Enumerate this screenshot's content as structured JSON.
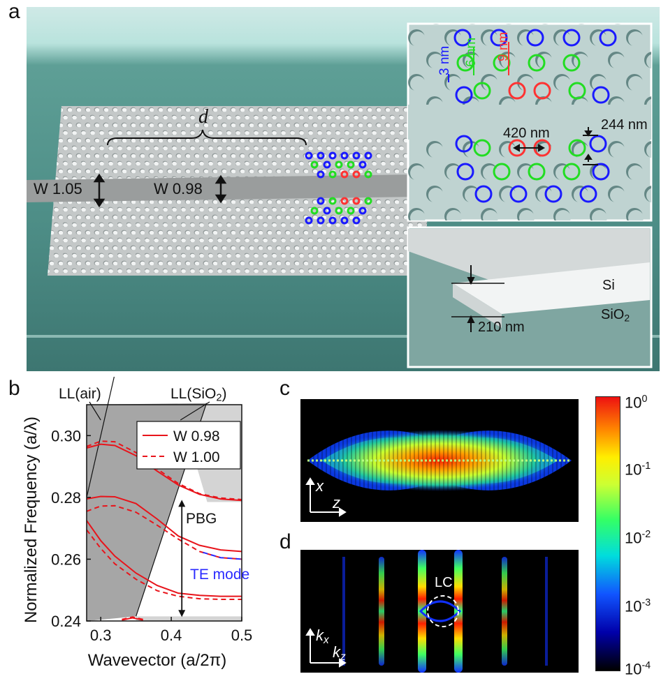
{
  "panels": {
    "a": {
      "letter": "a",
      "d_label": "d",
      "w105_label": "W 1.05",
      "w098_label": "W 0.98",
      "inset_top": {
        "shift_blue": "3 nm",
        "shift_green": "6 nm",
        "shift_red": "9 nm",
        "spacing": "420 nm",
        "diameter": "244 nm"
      },
      "inset_bottom": {
        "si": "Si",
        "sio2_main": "SiO",
        "sio2_sub": "2",
        "thickness": "210 nm"
      },
      "colors": {
        "blue": "#1a1aff",
        "green": "#22dd22",
        "red": "#ff3333"
      }
    },
    "b": {
      "letter": "b",
      "ll_air": "LL(air)",
      "ll_sio2_main": "LL(SiO",
      "ll_sio2_sub": "2",
      "ll_sio2_end": ")",
      "pbg_label": "PBG",
      "te_label": "TE mode"
    },
    "c": {
      "letter": "c",
      "axis_x": "x",
      "axis_z": "z"
    },
    "d": {
      "letter": "d",
      "axis_kx_main": "k",
      "axis_kx_sub": "x",
      "axis_kz_main": "k",
      "axis_kz_sub": "z",
      "lc_label": "LC"
    },
    "colorbar": {
      "ticks": [
        {
          "base": "10",
          "exp": "0"
        },
        {
          "base": "10",
          "exp": "-1"
        },
        {
          "base": "10",
          "exp": "-2"
        },
        {
          "base": "10",
          "exp": "-3"
        },
        {
          "base": "10",
          "exp": "-4"
        }
      ]
    }
  },
  "chart_data": {
    "type": "line",
    "xlabel": "Wavevector (a/2π)",
    "ylabel": "Normalized Frequency (a/λ)",
    "xlim": [
      0.28,
      0.5
    ],
    "ylim": [
      0.24,
      0.31
    ],
    "xticks": [
      "0.3",
      "0.4",
      "0.5"
    ],
    "yticks": [
      "0.24",
      "0.26",
      "0.28",
      "0.30"
    ],
    "legend_placement": "top-right",
    "series": [
      {
        "name": "W 0.98",
        "style": "solid",
        "color": "#e8141b",
        "bands": [
          {
            "x": [
              0.28,
              0.3,
              0.32,
              0.35,
              0.38,
              0.41,
              0.44,
              0.47,
              0.5
            ],
            "y": [
              0.296,
              0.2972,
              0.2968,
              0.2935,
              0.2885,
              0.284,
              0.281,
              0.2795,
              0.279
            ]
          },
          {
            "x": [
              0.28,
              0.3,
              0.32,
              0.35,
              0.38,
              0.41,
              0.44,
              0.47,
              0.5
            ],
            "y": [
              0.2795,
              0.2803,
              0.2802,
              0.278,
              0.273,
              0.2675,
              0.2645,
              0.263,
              0.2625
            ]
          },
          {
            "x": [
              0.28,
              0.3,
              0.32,
              0.35,
              0.38,
              0.41,
              0.44,
              0.47,
              0.5
            ],
            "y": [
              0.2725,
              0.266,
              0.261,
              0.2555,
              0.2515,
              0.249,
              0.2483,
              0.248,
              0.248
            ]
          },
          {
            "x": [
              0.33,
              0.345,
              0.36
            ],
            "y": [
              0.2403,
              0.241,
              0.2403
            ]
          }
        ]
      },
      {
        "name": "W 1.00",
        "style": "dashed",
        "color": "#e8141b",
        "bands": [
          {
            "x": [
              0.28,
              0.3,
              0.32,
              0.35,
              0.38,
              0.41,
              0.44,
              0.47,
              0.5
            ],
            "y": [
              0.2965,
              0.2982,
              0.298,
              0.2945,
              0.2892,
              0.2845,
              0.2812,
              0.2798,
              0.2793
            ]
          },
          {
            "x": [
              0.28,
              0.3,
              0.32,
              0.35,
              0.38,
              0.41,
              0.44,
              0.47,
              0.5
            ],
            "y": [
              0.2755,
              0.2772,
              0.2773,
              0.2752,
              0.271,
              0.2665,
              0.2625,
              0.2605,
              0.26
            ]
          },
          {
            "x": [
              0.28,
              0.3,
              0.32,
              0.35,
              0.38,
              0.41,
              0.44,
              0.47,
              0.5
            ],
            "y": [
              0.2695,
              0.2635,
              0.2585,
              0.2535,
              0.2498,
              0.248,
              0.2472,
              0.247,
              0.247
            ]
          },
          {
            "x": [
              0.33,
              0.345,
              0.36
            ],
            "y": [
              0.2405,
              0.2413,
              0.2405
            ]
          }
        ]
      }
    ],
    "light_lines": [
      {
        "name": "LL(air)",
        "x": [
          0.28,
          0.35
        ],
        "y": [
          0.28,
          0.35
        ]
      },
      {
        "name": "LL(SiO2)",
        "x": [
          0.35,
          0.45
        ],
        "y": [
          0.2415,
          0.3105
        ]
      }
    ]
  }
}
